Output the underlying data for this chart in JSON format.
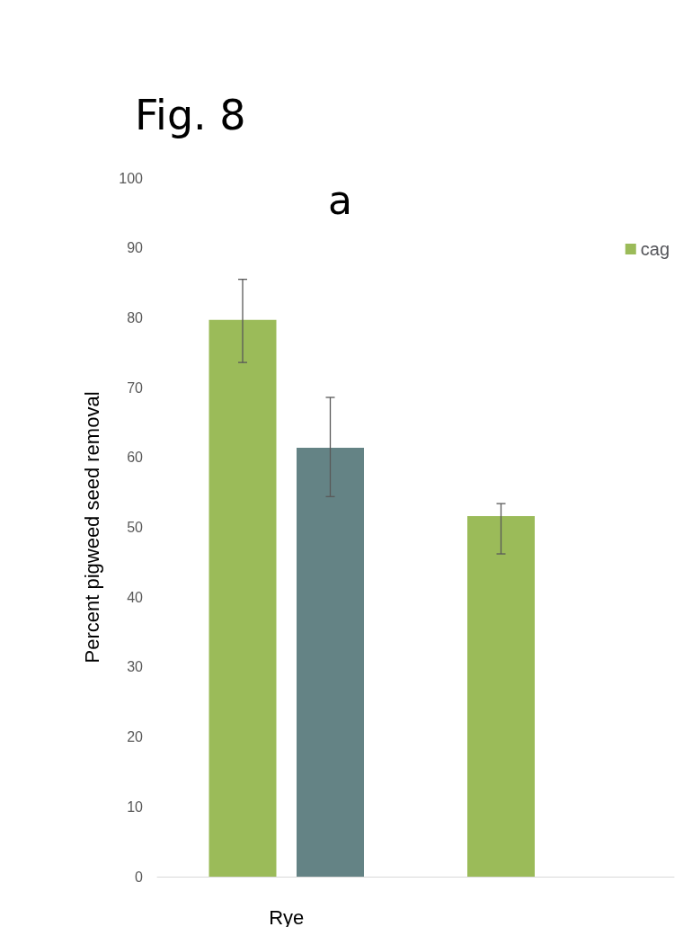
{
  "chart_data": {
    "type": "bar",
    "title": "Fig. 8",
    "ylabel": "Percent pigweed seed removal",
    "categories": [
      "Rye",
      null
    ],
    "series": [
      {
        "name": "cag",
        "color": "#9bbb59",
        "values": [
          79.7,
          51.6
        ],
        "errors": [
          [
            73.6,
            85.5
          ],
          [
            46.2,
            53.4
          ]
        ]
      },
      {
        "color": "#648385",
        "values": [
          61.4,
          null
        ],
        "errors": [
          [
            54.4,
            68.6
          ],
          null
        ]
      }
    ],
    "ylim": [
      0,
      100
    ],
    "yticks": [
      0,
      10,
      20,
      30,
      40,
      50,
      60,
      70,
      80,
      90,
      100
    ],
    "grid": false,
    "legend": "top right",
    "annotations": [
      "a"
    ]
  }
}
